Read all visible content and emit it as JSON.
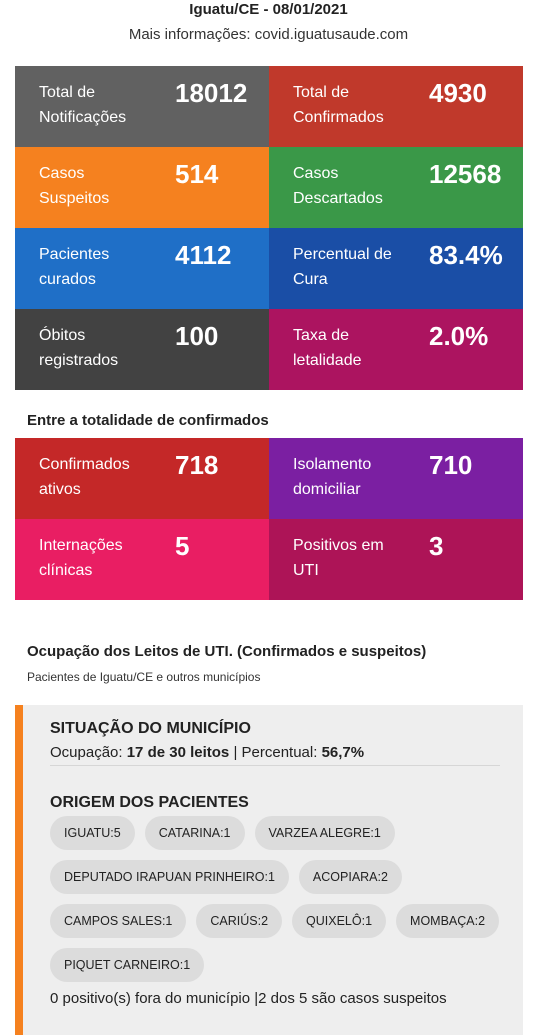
{
  "header": {
    "title": "Iguatu/CE - 08/01/2021",
    "subtitle": "Mais informações: covid.iguatusaude.com"
  },
  "summary": [
    {
      "label": "Total de Notificações",
      "value": "18012"
    },
    {
      "label": "Total de Confirmados",
      "value": "4930"
    },
    {
      "label": "Casos Suspeitos",
      "value": "514"
    },
    {
      "label": "Casos Descartados",
      "value": "12568"
    },
    {
      "label": "Pacientes curados",
      "value": "4112"
    },
    {
      "label": "Percentual de Cura",
      "value": "83.4%"
    },
    {
      "label": "Óbitos registrados",
      "value": "100"
    },
    {
      "label": "Taxa de letalidade",
      "value": "2.0%"
    }
  ],
  "confirmed_section": {
    "title": "Entre a totalidade de confirmados",
    "cards": [
      {
        "label": "Confirmados ativos",
        "value": "718"
      },
      {
        "label": "Isolamento domiciliar",
        "value": "710"
      },
      {
        "label": "Internações clínicas",
        "value": "5"
      },
      {
        "label": "Positivos em UTI",
        "value": "3"
      }
    ]
  },
  "icu": {
    "title": "Ocupação dos Leitos de UTI. (Confirmados e suspeitos)",
    "subtitle": "Pacientes de Iguatu/CE e outros municípios",
    "situation": {
      "title": "SITUAÇÃO DO MUNICÍPIO",
      "occupancy": [
        "Ocupação: ",
        "17 de 30 leitos",
        " | Percentual: ",
        "56,7%"
      ]
    },
    "origin": {
      "title": "ORIGEM DOS PACIENTES",
      "chips": [
        "IGUATU:5",
        "CATARINA:1",
        "VARZEA ALEGRE:1",
        "DEPUTADO IRAPUAN PRINHEIRO:1",
        "ACOPIARA:2",
        "CAMPOS SALES:1",
        "CARIÚS:2",
        "QUIXELÔ:1",
        "MOMBAÇA:2",
        "PIQUET CARNEIRO:1"
      ]
    },
    "footer": "0 positivo(s) fora do município |2 dos 5 são casos suspeitos"
  }
}
